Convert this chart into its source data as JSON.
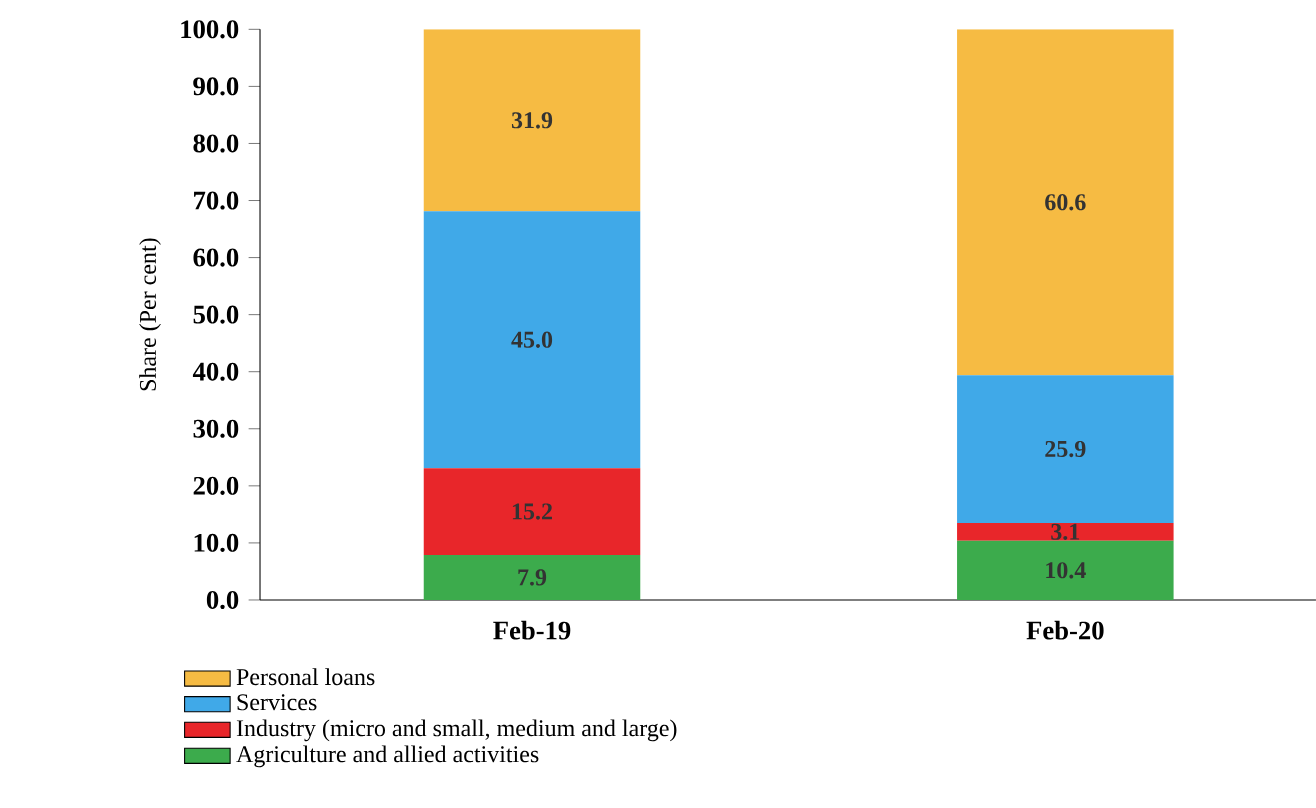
{
  "chart_data": {
    "type": "bar",
    "stacked": true,
    "ylabel": "Share (Per cent)",
    "categories": [
      "Feb-19",
      "Feb-20"
    ],
    "ylim": [
      0,
      100
    ],
    "yticks": [
      {
        "value": 0,
        "label": "0.0"
      },
      {
        "value": 10,
        "label": "10.0"
      },
      {
        "value": 20,
        "label": "20.0"
      },
      {
        "value": 30,
        "label": "30.0"
      },
      {
        "value": 40,
        "label": "40.0"
      },
      {
        "value": 50,
        "label": "50.0"
      },
      {
        "value": 60,
        "label": "60.0"
      },
      {
        "value": 70,
        "label": "70.0"
      },
      {
        "value": 80,
        "label": "80.0"
      },
      {
        "value": 90,
        "label": "90.0"
      },
      {
        "value": 100,
        "label": "100.0"
      }
    ],
    "series": [
      {
        "name": "Agriculture and allied activities",
        "color": "#3cab4c",
        "values": [
          7.9,
          10.4
        ],
        "value_labels": [
          "7.9",
          "10.4"
        ]
      },
      {
        "name": "Industry (micro and small, medium and large)",
        "color": "#e8262a",
        "values": [
          15.2,
          3.1
        ],
        "value_labels": [
          "15.2",
          "3.1"
        ]
      },
      {
        "name": "Services",
        "color": "#40a9e8",
        "values": [
          45.0,
          25.9
        ],
        "value_labels": [
          "45.0",
          "25.9"
        ]
      },
      {
        "name": "Personal loans",
        "color": "#f6bb43",
        "values": [
          31.9,
          60.6
        ],
        "value_labels": [
          "31.9",
          "60.6"
        ]
      }
    ],
    "legend": "bottom",
    "grid": false
  }
}
